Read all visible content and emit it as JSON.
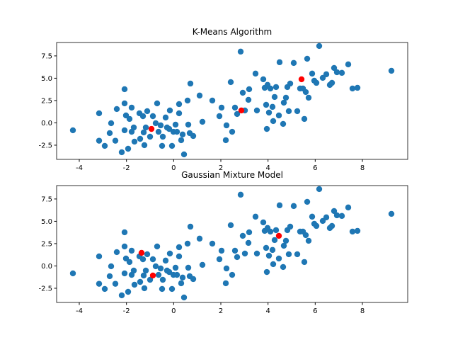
{
  "chart_data": [
    {
      "type": "scatter",
      "title": "K-Means Algorithm",
      "xlim": [
        -4.96,
        9.92
      ],
      "ylim": [
        -4.09,
        9.0
      ],
      "xticks": [
        -4,
        -2,
        0,
        2,
        4,
        6,
        8
      ],
      "yticks": [
        -2.5,
        {
          "value": 0,
          "label": "0.0"
        },
        2.5,
        {
          "value": 5,
          "label": "5.0"
        },
        7.5
      ],
      "series": [
        {
          "color": "#1f77b4",
          "x": [
            -4.27,
            -3.16,
            -2.92,
            -3.16,
            -2.71,
            -2.65,
            -2.47,
            -2.41,
            -2.2,
            -2.08,
            -2.08,
            -2.08,
            -2.02,
            -1.93,
            -1.87,
            -1.78,
            -1.78,
            -1.69,
            -1.66,
            -1.45,
            -1.42,
            -1.3,
            -1.27,
            -1.24,
            -1.18,
            -1.12,
            -1.0,
            -0.88,
            -0.76,
            -0.7,
            -0.64,
            -0.55,
            -0.49,
            -0.46,
            -0.34,
            -0.28,
            -0.19,
            -0.16,
            -0.07,
            -0.01,
            0.08,
            0.14,
            0.23,
            0.23,
            0.32,
            0.38,
            0.44,
            0.59,
            0.62,
            0.68,
            0.71,
            0.83,
            1.1,
            1.22,
            1.64,
            1.94,
            2.03,
            2.21,
            2.24,
            2.42,
            2.48,
            2.6,
            2.69,
            2.84,
            2.93,
            3.02,
            3.17,
            3.2,
            3.47,
            3.53,
            3.8,
            3.86,
            3.92,
            3.95,
            3.98,
            4.04,
            4.1,
            4.19,
            4.22,
            4.28,
            4.34,
            4.46,
            4.49,
            4.64,
            4.67,
            4.76,
            4.82,
            4.88,
            4.94,
            5.09,
            5.24,
            5.36,
            5.48,
            5.54,
            5.6,
            5.66,
            5.72,
            5.87,
            5.96,
            6.05,
            6.17,
            6.32,
            6.47,
            6.62,
            6.71,
            6.8,
            6.92,
            7.13,
            7.4,
            7.58,
            7.79,
            9.23
          ],
          "values": [
            -0.83,
            -2.0,
            -2.58,
            1.07,
            -1.15,
            -0.04,
            -2.0,
            1.55,
            -3.29,
            3.77,
            2.18,
            -0.83,
            0.83,
            -2.9,
            0.44,
            1.71,
            -1.0,
            -0.52,
            -2.1,
            1.07,
            -1.79,
            0.75,
            -1.07,
            -2.5,
            -0.52,
            1.31,
            -1.55,
            0.75,
            -0.04,
            2.18,
            -1.0,
            -0.28,
            -2.58,
            -1.55,
            0.6,
            -0.52,
            -0.68,
            1.39,
            -2.58,
            -1.0,
            -0.2,
            -1.0,
            1.07,
            2.1,
            -1.94,
            -1.3,
            -3.53,
            2.5,
            -0.2,
            -1.15,
            4.4,
            -1.47,
            3.06,
            0.12,
            2.5,
            0.75,
            1.71,
            -1.94,
            -0.28,
            4.56,
            -1.0,
            1.71,
            0.99,
            7.98,
            3.37,
            1.39,
            2.58,
            3.77,
            5.52,
            1.39,
            4.88,
            3.93,
            2.02,
            -0.68,
            4.25,
            1.15,
            3.85,
            1.79,
            0.2,
            2.9,
            4.01,
            0.83,
            6.79,
            -0.12,
            2.26,
            2.82,
            4.01,
            1.31,
            4.4,
            6.71,
            1.31,
            3.85,
            3.85,
            0.44,
            3.45,
            7.18,
            2.82,
            5.52,
            4.72,
            4.48,
            8.61,
            5.04,
            5.44,
            4.25,
            4.48,
            6.15,
            5.67,
            5.6,
            6.55,
            3.85,
            3.93,
            5.83
          ]
        },
        {
          "color": "#ff0000",
          "x": [
            -0.94,
            2.87,
            5.42
          ],
          "values": [
            -0.68,
            1.39,
            4.88
          ]
        }
      ]
    },
    {
      "type": "scatter",
      "title": "Gaussian Mixture Model",
      "xlim": [
        -4.96,
        9.92
      ],
      "ylim": [
        -4.09,
        9.0
      ],
      "xticks": [
        -4,
        -2,
        0,
        2,
        4,
        6,
        8
      ],
      "yticks": [
        -2.5,
        {
          "value": 0,
          "label": "0.0"
        },
        2.5,
        {
          "value": 5,
          "label": "5.0"
        },
        7.5
      ],
      "series": [
        {
          "color": "#1f77b4",
          "x": [
            -4.27,
            -3.16,
            -2.92,
            -3.16,
            -2.71,
            -2.65,
            -2.47,
            -2.41,
            -2.2,
            -2.08,
            -2.08,
            -2.08,
            -2.02,
            -1.93,
            -1.87,
            -1.78,
            -1.78,
            -1.69,
            -1.66,
            -1.45,
            -1.42,
            -1.3,
            -1.27,
            -1.24,
            -1.18,
            -1.12,
            -1.0,
            -0.88,
            -0.76,
            -0.7,
            -0.64,
            -0.55,
            -0.49,
            -0.46,
            -0.34,
            -0.28,
            -0.19,
            -0.16,
            -0.07,
            -0.01,
            0.08,
            0.14,
            0.23,
            0.23,
            0.32,
            0.38,
            0.44,
            0.59,
            0.62,
            0.68,
            0.71,
            0.83,
            1.1,
            1.22,
            1.64,
            1.94,
            2.03,
            2.21,
            2.24,
            2.42,
            2.48,
            2.6,
            2.69,
            2.84,
            2.93,
            3.02,
            3.17,
            3.2,
            3.47,
            3.53,
            3.8,
            3.86,
            3.92,
            3.95,
            3.98,
            4.04,
            4.1,
            4.19,
            4.22,
            4.28,
            4.34,
            4.46,
            4.49,
            4.64,
            4.67,
            4.76,
            4.82,
            4.88,
            4.94,
            5.09,
            5.24,
            5.36,
            5.48,
            5.54,
            5.6,
            5.66,
            5.72,
            5.87,
            5.96,
            6.05,
            6.17,
            6.32,
            6.47,
            6.62,
            6.71,
            6.8,
            6.92,
            7.13,
            7.4,
            7.58,
            7.79,
            9.23
          ],
          "values": [
            -0.83,
            -2.0,
            -2.58,
            1.07,
            -1.15,
            -0.04,
            -2.0,
            1.55,
            -3.29,
            3.77,
            2.18,
            -0.83,
            0.83,
            -2.9,
            0.44,
            1.71,
            -1.0,
            -0.52,
            -2.1,
            1.07,
            -1.79,
            0.75,
            -1.07,
            -2.5,
            -0.52,
            1.31,
            -1.55,
            0.75,
            -0.04,
            2.18,
            -1.0,
            -0.28,
            -2.58,
            -1.55,
            0.6,
            -0.52,
            -0.68,
            1.39,
            -2.58,
            -1.0,
            -0.2,
            -1.0,
            1.07,
            2.1,
            -1.94,
            -1.3,
            -3.53,
            2.5,
            -0.2,
            -1.15,
            4.4,
            -1.47,
            3.06,
            0.12,
            2.5,
            0.75,
            1.71,
            -1.94,
            -0.28,
            4.56,
            -1.0,
            1.71,
            0.99,
            7.98,
            3.37,
            1.39,
            2.58,
            3.77,
            5.52,
            1.39,
            4.88,
            3.93,
            2.02,
            -0.68,
            4.25,
            1.15,
            3.85,
            1.79,
            0.2,
            2.9,
            4.01,
            0.83,
            6.79,
            -0.12,
            2.26,
            2.82,
            4.01,
            1.31,
            4.4,
            6.71,
            1.31,
            3.85,
            3.85,
            0.44,
            3.45,
            7.18,
            2.82,
            5.52,
            4.72,
            4.48,
            8.61,
            5.04,
            5.44,
            4.25,
            4.48,
            6.15,
            5.67,
            5.6,
            6.55,
            3.85,
            3.93,
            5.83
          ]
        },
        {
          "color": "#ff0000",
          "x": [
            -1.36,
            -0.88,
            4.46
          ],
          "values": [
            1.47,
            -1.07,
            3.37
          ]
        }
      ]
    }
  ]
}
